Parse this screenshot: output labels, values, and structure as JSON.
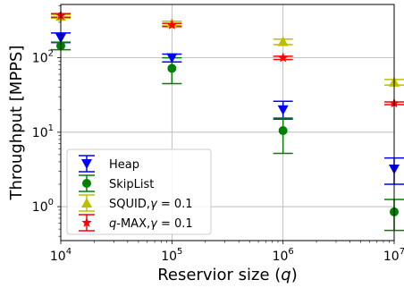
{
  "chart_data": {
    "type": "scatter",
    "xscale": "log",
    "yscale": "log",
    "xlabel_prefix": "Reservior size (",
    "xlabel_var": "q",
    "xlabel_suffix": ")",
    "ylabel": "Throughput [MPPS]",
    "xlim": [
      10000,
      10000000
    ],
    "ylim": [
      0.35,
      520
    ],
    "x_ticks": [
      {
        "value": 10000,
        "base": "10",
        "exp": "4"
      },
      {
        "value": 100000,
        "base": "10",
        "exp": "5"
      },
      {
        "value": 1000000,
        "base": "10",
        "exp": "6"
      },
      {
        "value": 10000000,
        "base": "10",
        "exp": "7"
      }
    ],
    "y_ticks": [
      {
        "value": 1,
        "base": "10",
        "exp": "0"
      },
      {
        "value": 10,
        "base": "10",
        "exp": "1"
      },
      {
        "value": 100,
        "base": "10",
        "exp": "2"
      }
    ],
    "grid": true,
    "legend_position": "lower-left",
    "series": [
      {
        "name": "Heap",
        "color": "#0000ff",
        "marker": "triangle-down",
        "points": [
          {
            "x": 10000,
            "y": 185,
            "lo": 160,
            "hi": 215
          },
          {
            "x": 100000,
            "y": 100,
            "lo": 88,
            "hi": 112
          },
          {
            "x": 1000000,
            "y": 20,
            "lo": 15,
            "hi": 26
          },
          {
            "x": 10000000,
            "y": 3.2,
            "lo": 2.0,
            "hi": 4.5
          }
        ]
      },
      {
        "name": "SkipList",
        "color": "#008000",
        "marker": "circle",
        "points": [
          {
            "x": 10000,
            "y": 145,
            "lo": 128,
            "hi": 162
          },
          {
            "x": 100000,
            "y": 72,
            "lo": 45,
            "hi": 100
          },
          {
            "x": 1000000,
            "y": 10.5,
            "lo": 5.2,
            "hi": 15.5
          },
          {
            "x": 10000000,
            "y": 0.85,
            "lo": 0.48,
            "hi": 1.25
          }
        ]
      },
      {
        "name_prefix": "SQUID,",
        "name_var": "γ",
        "name_suffix": " = 0.1",
        "color": "#bfbf00",
        "marker": "triangle-up",
        "points": [
          {
            "x": 10000,
            "y": 360,
            "lo": 340,
            "hi": 380
          },
          {
            "x": 100000,
            "y": 290,
            "lo": 270,
            "hi": 310
          },
          {
            "x": 1000000,
            "y": 165,
            "lo": 150,
            "hi": 178
          },
          {
            "x": 10000000,
            "y": 47,
            "lo": 43,
            "hi": 51
          }
        ]
      },
      {
        "name_prefix": "",
        "name_var": "q",
        "name_suffix": "-MAX,",
        "name_var2": "γ",
        "name_suffix2": " = 0.1",
        "color": "#ff0000",
        "marker": "star",
        "points": [
          {
            "x": 10000,
            "y": 370,
            "lo": 350,
            "hi": 392
          },
          {
            "x": 100000,
            "y": 275,
            "lo": 262,
            "hi": 290
          },
          {
            "x": 1000000,
            "y": 100,
            "lo": 95,
            "hi": 105
          },
          {
            "x": 10000000,
            "y": 24.5,
            "lo": 23.5,
            "hi": 25.5
          }
        ]
      }
    ]
  }
}
